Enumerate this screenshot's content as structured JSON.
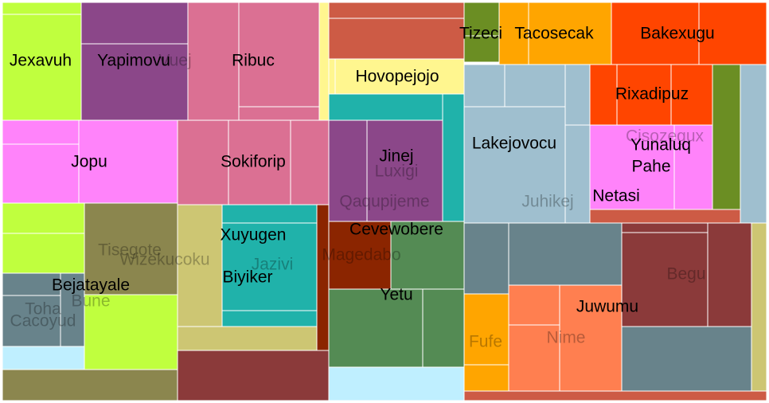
{
  "chart_data": {
    "type": "treemap",
    "title": "",
    "colors": {
      "lime": "#c0ff3e",
      "purple": "#8b4789",
      "pink": "#db7093",
      "lightyellow": "#fff68f",
      "tomato": "#cd5b45",
      "olive": "#6b8e23",
      "orange": "#ffa500",
      "orangered": "#ff4500",
      "magenta": "#ff83fa",
      "lightblue": "#9fbfcf",
      "teal": "#20b2aa",
      "khaki": "#8b864e",
      "lightkhaki": "#cdc673",
      "slate": "#68838b",
      "skyblue": "#bfefff",
      "brown": "#8b3a3a",
      "darkred": "#8b2500",
      "green": "#548b54",
      "coral": "#ff7f50"
    },
    "labels": [
      {
        "text": "Jexavuh",
        "style": "dark"
      },
      {
        "text": "Yapimovu",
        "style": "dark"
      },
      {
        "text": "Vuej",
        "style": "faint"
      },
      {
        "text": "Ribuc",
        "style": "dark"
      },
      {
        "text": "Hovopejojo",
        "style": "dark"
      },
      {
        "text": "Tizeci",
        "style": "dark"
      },
      {
        "text": "Tacosecak",
        "style": "dark"
      },
      {
        "text": "Bakexugu",
        "style": "dark"
      },
      {
        "text": "Rixadipuz",
        "style": "dark"
      },
      {
        "text": "Jopu",
        "style": "dark"
      },
      {
        "text": "Sokiforip",
        "style": "dark"
      },
      {
        "text": "Jinej",
        "style": "dark"
      },
      {
        "text": "Luxigi",
        "style": "faint"
      },
      {
        "text": "Lakejovocu",
        "style": "dark"
      },
      {
        "text": "Cisozegux",
        "style": "faint"
      },
      {
        "text": "Yunaluq",
        "style": "dark"
      },
      {
        "text": "Pahe",
        "style": "dark"
      },
      {
        "text": "Qaqupijeme",
        "style": "faint"
      },
      {
        "text": "Juhikej",
        "style": "faint"
      },
      {
        "text": "Netasi",
        "style": "dark"
      },
      {
        "text": "Cevewobere",
        "style": "dark"
      },
      {
        "text": "Xuyugen",
        "style": "dark"
      },
      {
        "text": "Tisegote",
        "style": "faint"
      },
      {
        "text": "Wizekucoku",
        "style": "faint"
      },
      {
        "text": "Magedabo",
        "style": "faint"
      },
      {
        "text": "Jazivi",
        "style": "faint"
      },
      {
        "text": "Biyiker",
        "style": "dark"
      },
      {
        "text": "Begu",
        "style": "faint"
      },
      {
        "text": "Bejatayale",
        "style": "dark"
      },
      {
        "text": "Yetu",
        "style": "dark"
      },
      {
        "text": "Bune",
        "style": "faint"
      },
      {
        "text": "Juwumu",
        "style": "dark"
      },
      {
        "text": "Toha",
        "style": "faint"
      },
      {
        "text": "Cacoyud",
        "style": "faint"
      },
      {
        "text": "Fufe",
        "style": "faint"
      },
      {
        "text": "Nime",
        "style": "faint"
      }
    ]
  }
}
